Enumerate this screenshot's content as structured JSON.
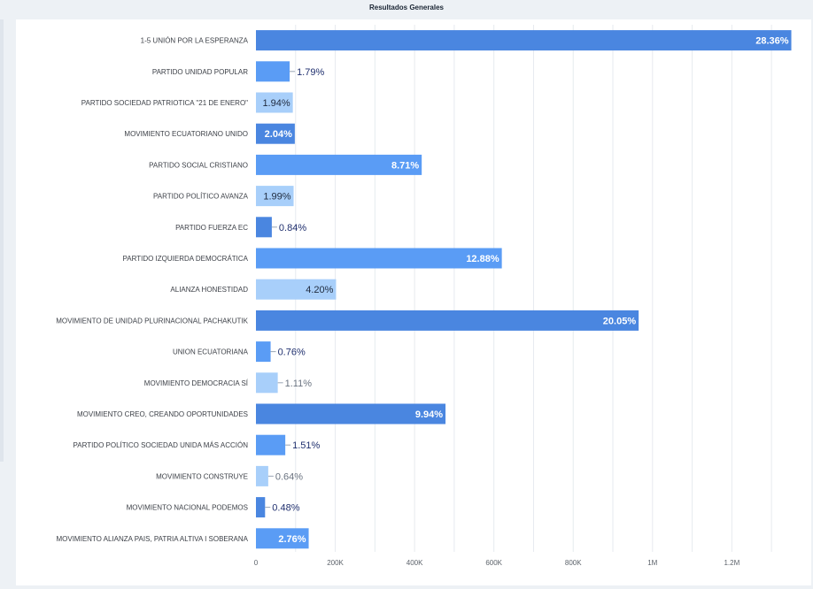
{
  "title": "Resultados Generales",
  "colors": {
    "background": "#edf1f5",
    "panel": "#ffffff",
    "grid": "#e6eaef",
    "bar_dark": "#4a86e0",
    "bar_mid": "#5a9cf5",
    "bar_light": "#a8cffa"
  },
  "chart_data": {
    "type": "bar",
    "orientation": "horizontal",
    "title": "Resultados Generales",
    "xlabel": "",
    "ylabel": "",
    "xlim": [
      0,
      1360000
    ],
    "x_ticks": [
      0,
      200000,
      400000,
      600000,
      800000,
      1000000,
      1200000
    ],
    "x_tick_labels": [
      "0",
      "200K",
      "400K",
      "600K",
      "800K",
      "1M",
      "1.2M"
    ],
    "grid": true,
    "legend": "none",
    "categories": [
      "1-5 UNIÓN POR LA ESPERANZA",
      "PARTIDO UNIDAD POPULAR",
      "PARTIDO SOCIEDAD PATRIOTICA \"21 DE ENERO\"",
      "MOVIMIENTO ECUATORIANO UNIDO",
      "PARTIDO SOCIAL CRISTIANO",
      "PARTIDO POLÍTICO AVANZA",
      "PARTIDO FUERZA EC",
      "PARTIDO IZQUIERDA DEMOCRÁTICA",
      "ALIANZA HONESTIDAD",
      "MOVIMIENTO DE UNIDAD PLURINACIONAL PACHAKUTIK",
      "UNION ECUATORIANA",
      "MOVIMIENTO DEMOCRACIA SÍ",
      "MOVIMIENTO CREO, CREANDO OPORTUNIDADES",
      "PARTIDO POLÍTICO SOCIEDAD UNIDA MÁS ACCIÓN",
      "MOVIMIENTO CONSTRUYE",
      "MOVIMIENTO NACIONAL PODEMOS",
      "MOVIMIENTO ALIANZA PAIS, PATRIA ALTIVA I SOBERANA"
    ],
    "values": [
      1350000,
      85000,
      93000,
      98000,
      418000,
      95000,
      40000,
      620000,
      202000,
      965000,
      37000,
      55000,
      478000,
      74000,
      31000,
      23000,
      133000
    ],
    "labels": [
      "28.36%",
      "1.79%",
      "1.94%",
      "2.04%",
      "8.71%",
      "1.99%",
      "0.84%",
      "12.88%",
      "4.20%",
      "20.05%",
      "0.76%",
      "1.11%",
      "9.94%",
      "1.51%",
      "0.64%",
      "0.48%",
      "2.76%"
    ],
    "bar_colors": [
      "#4a86e0",
      "#5a9cf5",
      "#a8cffa",
      "#4a86e0",
      "#5a9cf5",
      "#a8cffa",
      "#4a86e0",
      "#5a9cf5",
      "#a8cffa",
      "#4a86e0",
      "#5a9cf5",
      "#a8cffa",
      "#4a86e0",
      "#5a9cf5",
      "#a8cffa",
      "#4a86e0",
      "#5a9cf5"
    ]
  }
}
